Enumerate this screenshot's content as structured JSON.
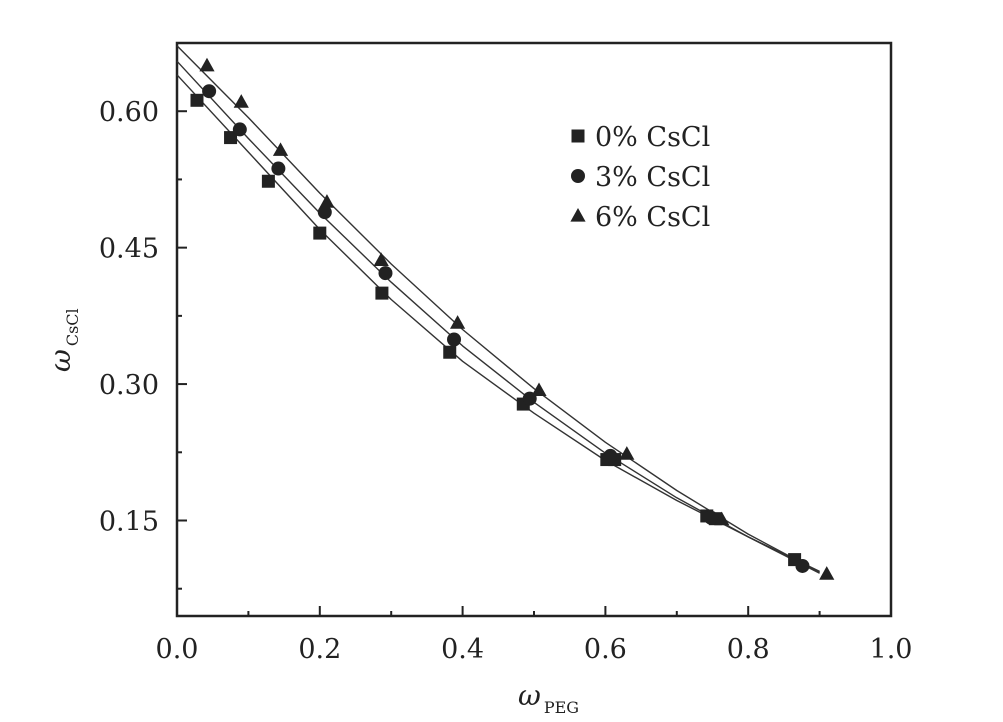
{
  "chart_data": {
    "type": "scatter",
    "x_range": [
      0.0,
      1.0
    ],
    "y_range": [
      0.045,
      0.675
    ],
    "x_ticks": [
      0.0,
      0.2,
      0.4,
      0.6,
      0.8,
      1.0
    ],
    "x_tick_labels": [
      "0.0",
      "0.2",
      "0.4",
      "0.6",
      "0.8",
      "1.0"
    ],
    "y_ticks": [
      0.15,
      0.3,
      0.45,
      0.6
    ],
    "y_tick_labels": [
      "0.15",
      "0.30",
      "0.45",
      "0.60"
    ],
    "xlabel": {
      "symbol": "ω",
      "subscript": "PEG"
    },
    "ylabel": {
      "symbol": "ω",
      "subscript": "CsCl"
    },
    "legend_position": "top-right",
    "grid": false,
    "series": [
      {
        "name": "0% CsCl",
        "marker": "square",
        "points": [
          [
            0.028,
            0.612
          ],
          [
            0.075,
            0.571
          ],
          [
            0.128,
            0.523
          ],
          [
            0.2,
            0.466
          ],
          [
            0.287,
            0.4
          ],
          [
            0.382,
            0.335
          ],
          [
            0.485,
            0.278
          ],
          [
            0.602,
            0.217
          ],
          [
            0.613,
            0.217
          ],
          [
            0.742,
            0.155
          ],
          [
            0.754,
            0.152
          ],
          [
            0.865,
            0.107
          ]
        ],
        "curve": [
          [
            0.0,
            0.64
          ],
          [
            0.1,
            0.555
          ],
          [
            0.2,
            0.47
          ],
          [
            0.3,
            0.393
          ],
          [
            0.4,
            0.325
          ],
          [
            0.5,
            0.268
          ],
          [
            0.6,
            0.216
          ],
          [
            0.7,
            0.172
          ],
          [
            0.8,
            0.132
          ],
          [
            0.9,
            0.094
          ]
        ]
      },
      {
        "name": "3% CsCl",
        "marker": "circle",
        "points": [
          [
            0.045,
            0.622
          ],
          [
            0.088,
            0.58
          ],
          [
            0.142,
            0.537
          ],
          [
            0.207,
            0.489
          ],
          [
            0.292,
            0.422
          ],
          [
            0.388,
            0.349
          ],
          [
            0.494,
            0.284
          ],
          [
            0.607,
            0.221
          ],
          [
            0.748,
            0.153
          ],
          [
            0.876,
            0.1
          ]
        ],
        "curve": [
          [
            0.0,
            0.655
          ],
          [
            0.1,
            0.57
          ],
          [
            0.2,
            0.488
          ],
          [
            0.3,
            0.412
          ],
          [
            0.4,
            0.342
          ],
          [
            0.5,
            0.28
          ],
          [
            0.6,
            0.224
          ],
          [
            0.7,
            0.175
          ],
          [
            0.8,
            0.132
          ],
          [
            0.9,
            0.092
          ]
        ]
      },
      {
        "name": "6% CsCl",
        "marker": "triangle",
        "points": [
          [
            0.042,
            0.65
          ],
          [
            0.09,
            0.61
          ],
          [
            0.145,
            0.557
          ],
          [
            0.21,
            0.5
          ],
          [
            0.286,
            0.436
          ],
          [
            0.393,
            0.367
          ],
          [
            0.507,
            0.293
          ],
          [
            0.63,
            0.223
          ],
          [
            0.763,
            0.151
          ],
          [
            0.91,
            0.091
          ]
        ],
        "curve": [
          [
            0.0,
            0.672
          ],
          [
            0.1,
            0.593
          ],
          [
            0.2,
            0.51
          ],
          [
            0.3,
            0.432
          ],
          [
            0.4,
            0.36
          ],
          [
            0.5,
            0.295
          ],
          [
            0.6,
            0.236
          ],
          [
            0.7,
            0.183
          ],
          [
            0.8,
            0.135
          ],
          [
            0.9,
            0.093
          ]
        ]
      }
    ]
  }
}
